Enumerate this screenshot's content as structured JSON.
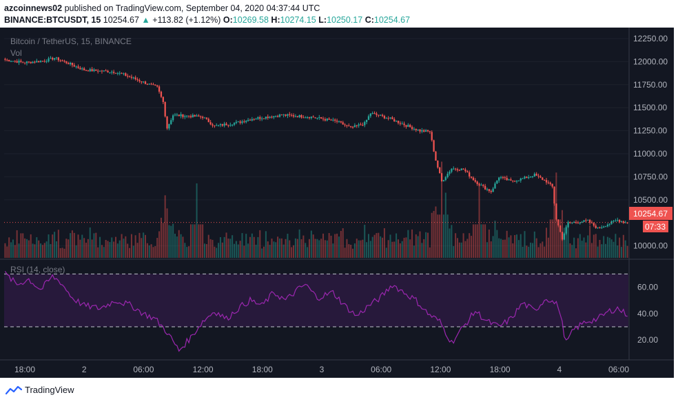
{
  "header": {
    "author": "azcoinnews02",
    "published_text": "published on TradingView.com, September 04, 2020 04:37:44 UTC",
    "symbol": "BINANCE:BTCUSDT, 15",
    "last": "10254.67",
    "change": "+113.82 (+1.12%)",
    "o_label": "O:",
    "o_value": "10269.58",
    "h_label": "H:",
    "h_value": "10274.15",
    "l_label": "L:",
    "l_value": "10250.17",
    "c_label": "C:",
    "c_value": "10254.67"
  },
  "legend": {
    "symbol_desc": "Bitcoin / TetherUS, 15, BINANCE",
    "vol_label": "Vol",
    "rsi_label": "RSI (14, close)"
  },
  "price_badge": {
    "value": "10254.67",
    "countdown": "07:33"
  },
  "footer": {
    "brand": "TradingView"
  },
  "colors": {
    "up": "#26a69a",
    "down": "#ef5350",
    "background": "#131722",
    "rsi_line": "#9c27b0",
    "rsi_band": "#2a1a3e"
  },
  "chart_data": [
    {
      "type": "candlestick",
      "title": "Bitcoin / TetherUS, 15, BINANCE",
      "x_tick_labels": [
        "18:00",
        "2",
        "06:00",
        "12:00",
        "18:00",
        "3",
        "06:00",
        "12:00",
        "18:00",
        "4",
        "06:00"
      ],
      "y_tick_labels": [
        "12250.00",
        "12000.00",
        "11750.00",
        "11500.00",
        "11250.00",
        "11000.00",
        "10750.00",
        "10500.00",
        "10000.00"
      ],
      "ylim": [
        9870,
        12310
      ],
      "last_price": 10254.67,
      "close_anchors": [
        [
          0,
          12020
        ],
        [
          10,
          11990
        ],
        [
          20,
          12010
        ],
        [
          25,
          12040
        ],
        [
          30,
          12000
        ],
        [
          40,
          11910
        ],
        [
          55,
          11890
        ],
        [
          60,
          11860
        ],
        [
          72,
          11760
        ],
        [
          77,
          11720
        ],
        [
          80,
          11560
        ],
        [
          82,
          11280
        ],
        [
          85,
          11420
        ],
        [
          100,
          11400
        ],
        [
          106,
          11300
        ],
        [
          118,
          11340
        ],
        [
          125,
          11380
        ],
        [
          140,
          11420
        ],
        [
          155,
          11400
        ],
        [
          168,
          11350
        ],
        [
          175,
          11280
        ],
        [
          182,
          11330
        ],
        [
          185,
          11440
        ],
        [
          195,
          11380
        ],
        [
          205,
          11290
        ],
        [
          210,
          11250
        ],
        [
          215,
          11240
        ],
        [
          218,
          10930
        ],
        [
          221,
          10700
        ],
        [
          226,
          10840
        ],
        [
          232,
          10830
        ],
        [
          238,
          10700
        ],
        [
          242,
          10640
        ],
        [
          246,
          10590
        ],
        [
          250,
          10750
        ],
        [
          256,
          10700
        ],
        [
          262,
          10730
        ],
        [
          268,
          10770
        ],
        [
          274,
          10700
        ],
        [
          277,
          10640
        ],
        [
          279,
          10290
        ],
        [
          282,
          10080
        ],
        [
          285,
          10250
        ],
        [
          295,
          10270
        ],
        [
          300,
          10190
        ],
        [
          310,
          10280
        ],
        [
          314,
          10255
        ]
      ],
      "volume_spikes": [
        [
          97,
          0.48
        ],
        [
          221,
          0.62
        ],
        [
          223,
          0.42
        ],
        [
          240,
          0.48
        ],
        [
          279,
          0.55
        ]
      ]
    },
    {
      "type": "line",
      "title": "RSI (14, close)",
      "y_tick_labels": [
        "60.00",
        "40.00",
        "20.00"
      ],
      "ylim": [
        5,
        78
      ],
      "bands": [
        30,
        70
      ],
      "anchors": [
        [
          0,
          70
        ],
        [
          6,
          62
        ],
        [
          12,
          66
        ],
        [
          18,
          58
        ],
        [
          24,
          68
        ],
        [
          28,
          64
        ],
        [
          34,
          52
        ],
        [
          40,
          46
        ],
        [
          48,
          44
        ],
        [
          56,
          50
        ],
        [
          64,
          46
        ],
        [
          70,
          40
        ],
        [
          76,
          36
        ],
        [
          82,
          26
        ],
        [
          88,
          12
        ],
        [
          94,
          22
        ],
        [
          100,
          34
        ],
        [
          106,
          42
        ],
        [
          112,
          36
        ],
        [
          118,
          44
        ],
        [
          124,
          50
        ],
        [
          130,
          46
        ],
        [
          136,
          56
        ],
        [
          142,
          50
        ],
        [
          148,
          58
        ],
        [
          152,
          62
        ],
        [
          158,
          52
        ],
        [
          166,
          56
        ],
        [
          172,
          46
        ],
        [
          178,
          38
        ],
        [
          184,
          46
        ],
        [
          190,
          52
        ],
        [
          196,
          62
        ],
        [
          202,
          56
        ],
        [
          208,
          50
        ],
        [
          214,
          40
        ],
        [
          220,
          34
        ],
        [
          226,
          18
        ],
        [
          232,
          30
        ],
        [
          238,
          42
        ],
        [
          244,
          34
        ],
        [
          250,
          30
        ],
        [
          256,
          36
        ],
        [
          262,
          48
        ],
        [
          268,
          42
        ],
        [
          274,
          52
        ],
        [
          280,
          46
        ],
        [
          284,
          18
        ],
        [
          288,
          28
        ],
        [
          294,
          34
        ],
        [
          300,
          36
        ],
        [
          306,
          42
        ],
        [
          310,
          44
        ],
        [
          314,
          40
        ]
      ]
    }
  ]
}
